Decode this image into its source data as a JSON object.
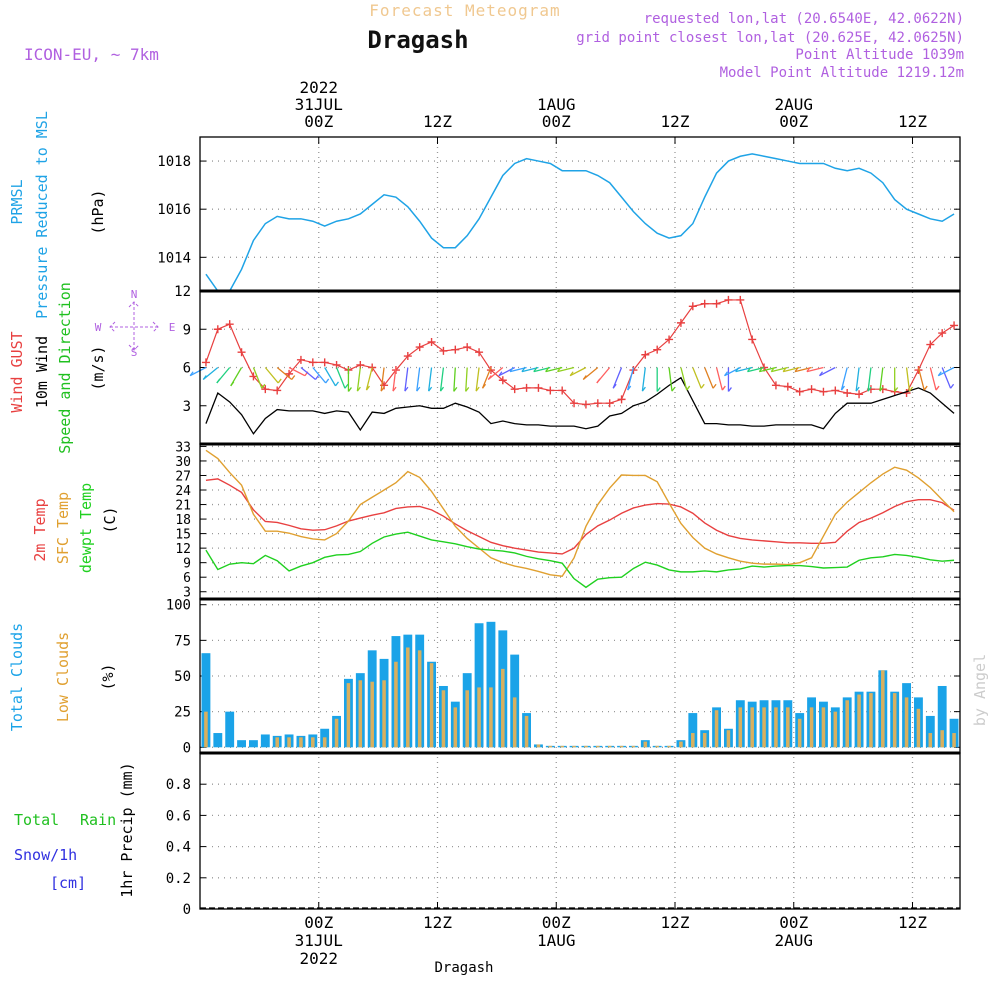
{
  "header": {
    "app_title": "Forecast Meteogram",
    "location_name": "Dragash",
    "model": "ICON-EU, ~ 7km",
    "requested_point": "requested lon,lat (20.6540E, 42.0622N)",
    "grid_point": "grid point closest lon,lat (20.625E, 42.0625N)",
    "point_altitude": "Point Altitude 1039m",
    "model_altitude": "Model Point Altitude 1219.12m",
    "watermark": "by Angel",
    "footer_location": "Dragash"
  },
  "colors": {
    "pressure": "#1fa3e6",
    "gust": "#e84040",
    "wind10m": "#000000",
    "speed_dir": "#20c020",
    "temp2m": "#e84040",
    "sfc_temp": "#e0a030",
    "dewpt": "#20d020",
    "total_clouds": "#1aa3e8",
    "low_clouds": "#d8b060",
    "rain": "#20c020",
    "snow": "#3030e0",
    "header_purple": "#b060e0",
    "title_orange": "#f0c890"
  },
  "chart_data": [
    {
      "id": "pressure",
      "type": "line",
      "ylabel_lines": [
        "PRMSL",
        "Pressure Reduced to MSL"
      ],
      "unit": "(hPa)",
      "ylim": [
        1012.6,
        1019
      ],
      "yticks": [
        "1014",
        "1016",
        "1018"
      ],
      "grid": true,
      "x": [
        0,
        1,
        2,
        3,
        4,
        5,
        6,
        7,
        8,
        9,
        10,
        11,
        12,
        13,
        14,
        15,
        16,
        17,
        18,
        19,
        20,
        21,
        22,
        23,
        24,
        25,
        26,
        27,
        28,
        29,
        30,
        31,
        32,
        33,
        34,
        35,
        36,
        37,
        38,
        39,
        40,
        41,
        42,
        43,
        44,
        45,
        46,
        47,
        48,
        49,
        50,
        51,
        52,
        53,
        54,
        55,
        56,
        57,
        58,
        59,
        60,
        61,
        62,
        63
      ],
      "series": [
        {
          "values": [
            1013.3,
            1012.6,
            1012.6,
            1013.5,
            1014.7,
            1015.4,
            1015.7,
            1015.6,
            1015.6,
            1015.5,
            1015.3,
            1015.5,
            1015.6,
            1015.8,
            1016.2,
            1016.6,
            1016.5,
            1016.1,
            1015.5,
            1014.8,
            1014.4,
            1014.4,
            1014.9,
            1015.6,
            1016.5,
            1017.4,
            1017.9,
            1018.1,
            1018.0,
            1017.9,
            1017.6,
            1017.6,
            1017.6,
            1017.4,
            1017.1,
            1016.5,
            1015.9,
            1015.4,
            1015.0,
            1014.8,
            1014.9,
            1015.4,
            1016.5,
            1017.5,
            1018.0,
            1018.2,
            1018.3,
            1018.2,
            1018.1,
            1018.0,
            1017.9,
            1017.9,
            1017.9,
            1017.7,
            1017.6,
            1017.7,
            1017.5,
            1017.1,
            1016.4,
            1016.0,
            1015.8,
            1015.6,
            1015.5,
            1015.8
          ]
        }
      ]
    },
    {
      "id": "wind",
      "type": "line",
      "ylabel_lines": [
        "Wind GUST",
        "10m Wind",
        "Speed and Direction"
      ],
      "unit": "(m/s)",
      "compass": {
        "n": "N",
        "s": "S",
        "w": "W",
        "e": "E"
      },
      "ylim": [
        0,
        12
      ],
      "yticks": [
        "3",
        "6",
        "9",
        "12"
      ],
      "grid": true,
      "x": [
        0,
        1,
        2,
        3,
        4,
        5,
        6,
        7,
        8,
        9,
        10,
        11,
        12,
        13,
        14,
        15,
        16,
        17,
        18,
        19,
        20,
        21,
        22,
        23,
        24,
        25,
        26,
        27,
        28,
        29,
        30,
        31,
        32,
        33,
        34,
        35,
        36,
        37,
        38,
        39,
        40,
        41,
        42,
        43,
        44,
        45,
        46,
        47,
        48,
        49,
        50,
        51,
        52,
        53,
        54,
        55,
        56,
        57,
        58,
        59,
        60,
        61,
        62,
        63
      ],
      "series": [
        {
          "name": "Wind GUST",
          "values": [
            6.4,
            9.0,
            9.4,
            7.2,
            5.3,
            4.3,
            4.2,
            5.5,
            6.6,
            6.4,
            6.4,
            6.2,
            5.8,
            6.2,
            6.0,
            4.6,
            5.8,
            6.9,
            7.6,
            8.0,
            7.3,
            7.4,
            7.6,
            7.2,
            5.8,
            5.0,
            4.3,
            4.4,
            4.4,
            4.2,
            4.2,
            3.2,
            3.1,
            3.2,
            3.2,
            3.5,
            5.8,
            7.0,
            7.4,
            8.2,
            9.5,
            10.8,
            11.0,
            11.0,
            11.3,
            11.3,
            8.2,
            6.0,
            4.6,
            4.5,
            4.1,
            4.3,
            4.1,
            4.2,
            4.0,
            3.9,
            4.3,
            4.3,
            4.1,
            4.0,
            5.8,
            7.8,
            8.7,
            9.3
          ]
        },
        {
          "name": "10m Wind",
          "values": [
            1.6,
            4.0,
            3.3,
            2.3,
            0.8,
            2.0,
            2.7,
            2.6,
            2.6,
            2.6,
            2.4,
            2.6,
            2.5,
            1.1,
            2.5,
            2.4,
            2.8,
            2.9,
            3.0,
            2.8,
            2.8,
            3.2,
            2.9,
            2.5,
            1.6,
            1.8,
            1.6,
            1.5,
            1.5,
            1.4,
            1.4,
            1.4,
            1.2,
            1.4,
            2.2,
            2.4,
            3.0,
            3.3,
            3.9,
            4.6,
            5.2,
            3.4,
            1.6,
            1.6,
            1.5,
            1.5,
            1.4,
            1.4,
            1.5,
            1.5,
            1.5,
            1.5,
            1.2,
            2.4,
            3.2,
            3.2,
            3.2,
            3.5,
            3.8,
            4.1,
            4.4,
            4.0,
            3.2,
            2.4
          ]
        }
      ]
    },
    {
      "id": "temperature",
      "type": "line",
      "ylabel_lines": [
        "2m Temp",
        "SFC Temp",
        "dewpt Temp"
      ],
      "unit": "(C)",
      "ylim": [
        1.5,
        33.5
      ],
      "yticks": [
        "3",
        "6",
        "9",
        "12",
        "15",
        "18",
        "21",
        "24",
        "27",
        "30",
        "33"
      ],
      "grid": true,
      "x": [
        0,
        1,
        2,
        3,
        4,
        5,
        6,
        7,
        8,
        9,
        10,
        11,
        12,
        13,
        14,
        15,
        16,
        17,
        18,
        19,
        20,
        21,
        22,
        23,
        24,
        25,
        26,
        27,
        28,
        29,
        30,
        31,
        32,
        33,
        34,
        35,
        36,
        37,
        38,
        39,
        40,
        41,
        42,
        43,
        44,
        45,
        46,
        47,
        48,
        49,
        50,
        51,
        52,
        53,
        54,
        55,
        56,
        57,
        58,
        59,
        60,
        61,
        62,
        63
      ],
      "series": [
        {
          "name": "2m Temp",
          "values": [
            26.0,
            26.3,
            25.0,
            23.5,
            19.9,
            17.5,
            17.3,
            16.7,
            16.0,
            15.7,
            15.8,
            16.6,
            17.6,
            18.2,
            18.8,
            19.3,
            20.2,
            20.5,
            20.6,
            19.9,
            18.6,
            17.0,
            15.6,
            14.4,
            13.2,
            12.5,
            12.0,
            11.6,
            11.2,
            11.0,
            10.8,
            12.0,
            14.8,
            16.6,
            17.8,
            19.2,
            20.3,
            20.9,
            21.2,
            21.1,
            20.5,
            19.2,
            17.2,
            15.7,
            14.6,
            14.0,
            13.7,
            13.5,
            13.3,
            13.1,
            13.1,
            13.0,
            13.0,
            13.2,
            15.5,
            17.3,
            18.2,
            19.3,
            20.6,
            21.6,
            22.0,
            22.0,
            21.4,
            19.8
          ]
        },
        {
          "name": "SFC Temp",
          "values": [
            32.2,
            30.5,
            27.6,
            25.0,
            19.0,
            15.5,
            15.5,
            15.1,
            14.4,
            13.9,
            13.7,
            15.0,
            17.6,
            21.0,
            22.5,
            24.0,
            25.5,
            27.8,
            26.6,
            23.7,
            20.1,
            16.5,
            14.0,
            12.0,
            10.0,
            9.0,
            8.3,
            7.8,
            7.2,
            6.5,
            6.2,
            10.0,
            16.5,
            21.0,
            24.4,
            27.1,
            27.0,
            27.0,
            25.7,
            21.3,
            17.1,
            14.2,
            12.0,
            10.8,
            10.0,
            9.3,
            8.9,
            8.7,
            8.7,
            8.6,
            9.0,
            10.0,
            14.5,
            19.0,
            21.5,
            23.5,
            25.5,
            27.3,
            28.7,
            28.1,
            26.5,
            24.5,
            22.0,
            19.5
          ]
        },
        {
          "name": "dewpt Temp",
          "values": [
            11.6,
            7.6,
            8.7,
            9.0,
            8.8,
            10.5,
            9.4,
            7.3,
            8.3,
            9.0,
            10.1,
            10.6,
            10.7,
            11.3,
            13.0,
            14.3,
            14.9,
            15.3,
            14.5,
            13.7,
            13.3,
            12.9,
            12.3,
            11.8,
            11.6,
            11.4,
            11.0,
            10.3,
            9.8,
            9.4,
            8.9,
            5.7,
            3.9,
            5.6,
            5.9,
            6.0,
            7.8,
            9.1,
            8.5,
            7.5,
            7.1,
            7.1,
            7.3,
            7.1,
            7.5,
            7.7,
            8.3,
            8.1,
            8.3,
            8.4,
            8.4,
            8.2,
            7.9,
            8.0,
            8.1,
            9.5,
            10.0,
            10.2,
            10.7,
            10.5,
            10.1,
            9.6,
            9.3,
            9.5
          ]
        }
      ]
    },
    {
      "id": "clouds",
      "type": "bar",
      "ylabel_lines": [
        "Total Clouds",
        "Low Clouds"
      ],
      "unit": "(%)",
      "ylim": [
        -4,
        104
      ],
      "yticks": [
        "0",
        "25",
        "50",
        "75",
        "100"
      ],
      "grid": true,
      "x": [
        0,
        1,
        2,
        3,
        4,
        5,
        6,
        7,
        8,
        9,
        10,
        11,
        12,
        13,
        14,
        15,
        16,
        17,
        18,
        19,
        20,
        21,
        22,
        23,
        24,
        25,
        26,
        27,
        28,
        29,
        30,
        31,
        32,
        33,
        34,
        35,
        36,
        37,
        38,
        39,
        40,
        41,
        42,
        43,
        44,
        45,
        46,
        47,
        48,
        49,
        50,
        51,
        52,
        53,
        54,
        55,
        56,
        57,
        58,
        59,
        60,
        61,
        62,
        63
      ],
      "series": [
        {
          "name": "Total Clouds",
          "values": [
            66,
            10,
            25,
            5,
            5,
            9,
            8,
            9,
            8,
            9,
            13,
            22,
            48,
            52,
            68,
            62,
            78,
            79,
            79,
            60,
            43,
            32,
            52,
            87,
            88,
            82,
            65,
            24,
            2,
            1,
            1,
            1,
            1,
            1,
            1,
            1,
            1,
            5,
            1,
            1,
            5,
            24,
            12,
            28,
            13,
            33,
            32,
            33,
            33,
            33,
            24,
            35,
            32,
            28,
            35,
            39,
            39,
            54,
            39,
            45,
            35,
            22,
            43,
            20
          ]
        },
        {
          "name": "Low Clouds",
          "values": [
            25,
            0,
            0,
            0,
            0,
            0,
            7,
            7,
            7,
            7,
            7,
            20,
            45,
            47,
            46,
            47,
            60,
            70,
            68,
            59,
            40,
            28,
            40,
            42,
            42,
            55,
            35,
            22,
            2,
            1,
            1,
            1,
            1,
            1,
            1,
            1,
            1,
            4,
            1,
            1,
            4,
            10,
            10,
            26,
            12,
            28,
            28,
            28,
            28,
            28,
            20,
            28,
            28,
            25,
            33,
            37,
            38,
            54,
            38,
            35,
            27,
            10,
            12,
            10
          ]
        }
      ]
    },
    {
      "id": "precip",
      "type": "bar",
      "ylabel_lines": [
        "1hr Precip (mm)"
      ],
      "legend": [
        "Total",
        "Rain",
        "Snow/1h",
        "[cm]"
      ],
      "ylim": [
        0,
        1.0
      ],
      "yticks": [
        "0",
        "0.2",
        "0.4",
        "0.6",
        "0.8"
      ],
      "grid": true,
      "x": [
        0,
        1,
        2,
        3,
        4,
        5,
        6,
        7,
        8,
        9,
        10,
        11,
        12,
        13,
        14,
        15,
        16,
        17,
        18,
        19,
        20,
        21,
        22,
        23,
        24,
        25,
        26,
        27,
        28,
        29,
        30,
        31,
        32,
        33,
        34,
        35,
        36,
        37,
        38,
        39,
        40,
        41,
        42,
        43,
        44,
        45,
        46,
        47,
        48,
        49,
        50,
        51,
        52,
        53,
        54,
        55,
        56,
        57,
        58,
        59,
        60,
        61,
        62,
        63
      ],
      "series": [
        {
          "name": "Total",
          "values": [
            0,
            0,
            0,
            0,
            0,
            0,
            0,
            0,
            0,
            0,
            0,
            0,
            0,
            0,
            0,
            0,
            0,
            0,
            0,
            0,
            0,
            0,
            0,
            0,
            0,
            0,
            0,
            0,
            0,
            0,
            0,
            0,
            0,
            0,
            0,
            0,
            0,
            0,
            0,
            0,
            0,
            0,
            0,
            0,
            0,
            0,
            0,
            0,
            0,
            0,
            0,
            0,
            0,
            0,
            0,
            0,
            0,
            0,
            0,
            0,
            0,
            0,
            0,
            0
          ]
        }
      ]
    }
  ],
  "time_axis": {
    "top_labels": [
      {
        "lines": [
          "2022",
          "31JUL",
          "00Z"
        ],
        "x": 9.5
      },
      {
        "lines": [
          "12Z"
        ],
        "x": 19.5
      },
      {
        "lines": [
          "1AUG",
          "00Z"
        ],
        "x": 29.5
      },
      {
        "lines": [
          "12Z"
        ],
        "x": 39.5
      },
      {
        "lines": [
          "2AUG",
          "00Z"
        ],
        "x": 49.5
      },
      {
        "lines": [
          "12Z"
        ],
        "x": 59.5
      }
    ],
    "bottom_labels": [
      {
        "lines": [
          "00Z",
          "31JUL",
          "2022"
        ],
        "x": 9.5
      },
      {
        "lines": [
          "12Z"
        ],
        "x": 19.5
      },
      {
        "lines": [
          "00Z",
          "1AUG"
        ],
        "x": 29.5
      },
      {
        "lines": [
          "12Z"
        ],
        "x": 39.5
      },
      {
        "lines": [
          "00Z",
          "2AUG"
        ],
        "x": 49.5
      },
      {
        "lines": [
          "12Z"
        ],
        "x": 59.5
      }
    ]
  }
}
